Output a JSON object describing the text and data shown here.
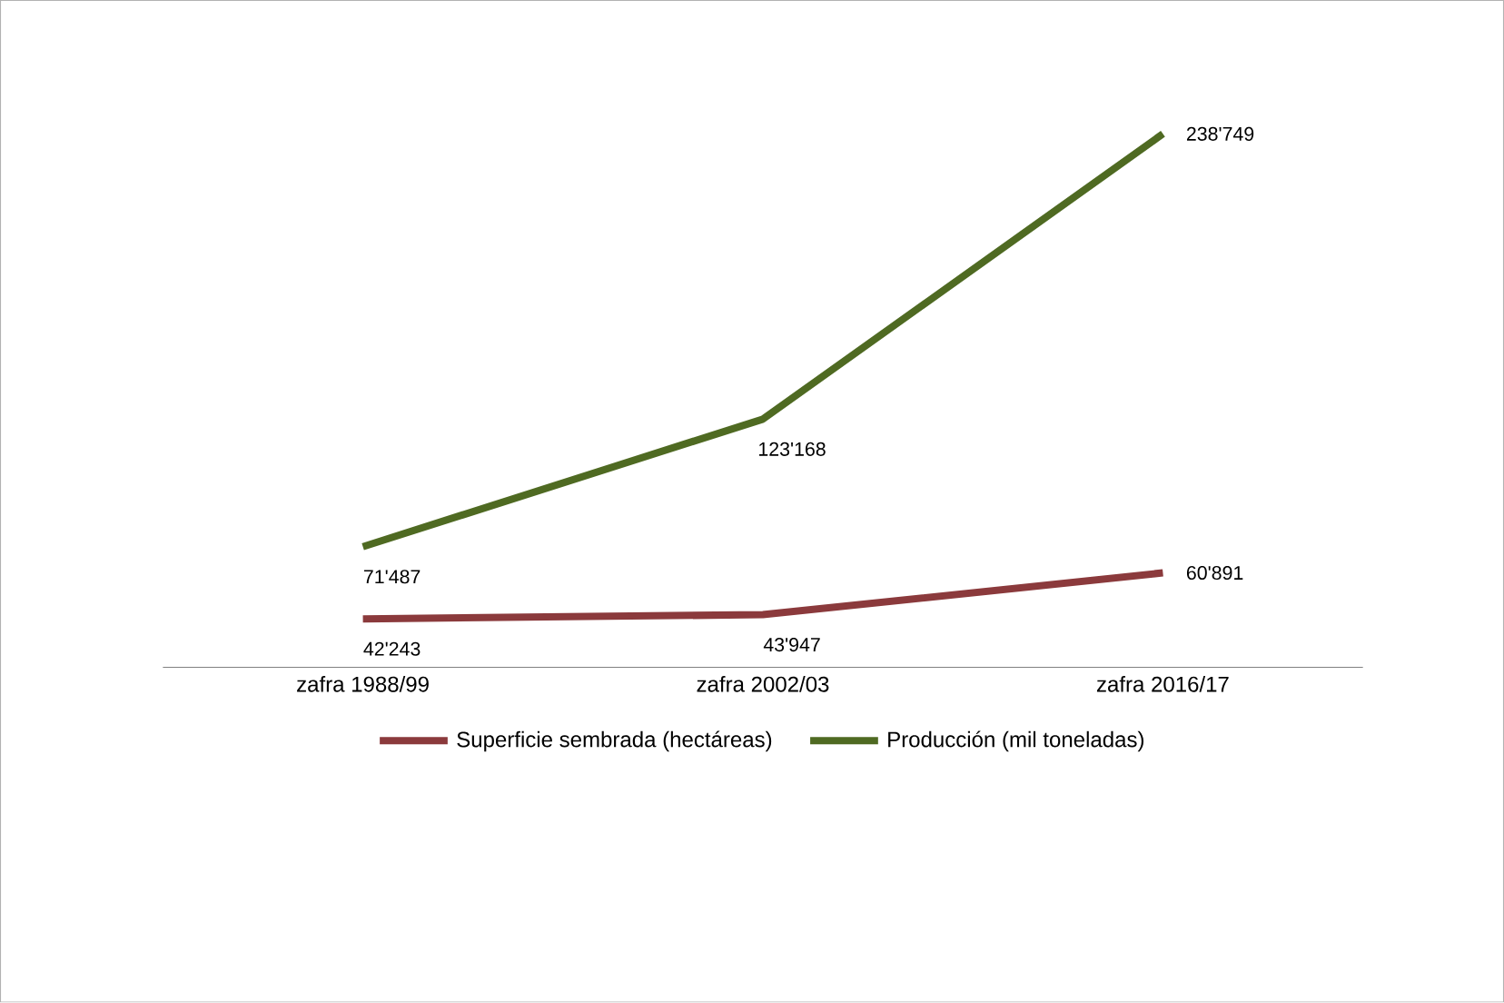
{
  "chart_data": {
    "type": "line",
    "categories": [
      "zafra 1988/99",
      "zafra 2002/03",
      "zafra 2016/17"
    ],
    "series": [
      {
        "name": "Superficie sembrada (hectáreas)",
        "color": "#8b3a3c",
        "values": [
          42243,
          43947,
          60891
        ],
        "value_labels": [
          "42'243",
          "43'947",
          "60'891"
        ]
      },
      {
        "name": "Producción (mil toneladas)",
        "color": "#4f6a22",
        "values": [
          71487,
          123168,
          238749
        ],
        "value_labels": [
          "71'487",
          "123'168",
          "238'749"
        ]
      }
    ],
    "legend": "bottom",
    "marker": "none",
    "line_style": "solid",
    "tick_labels": "x"
  }
}
